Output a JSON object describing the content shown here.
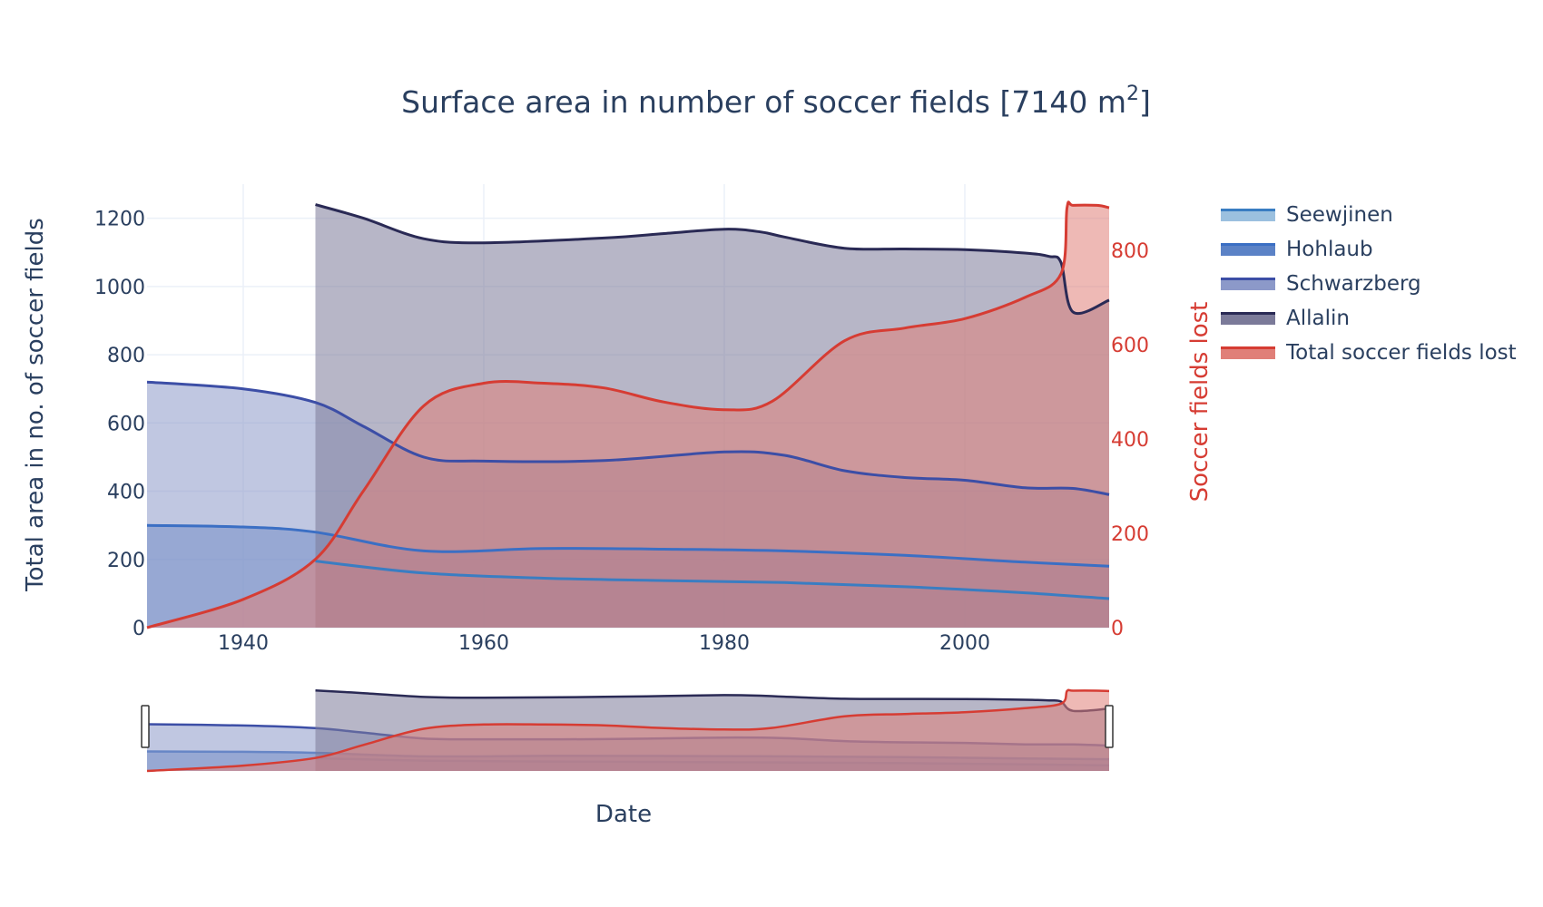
{
  "chart_data": {
    "type": "area",
    "title": "Surface area in number of soccer fields [7140 m²]",
    "title_main": "Surface area in number of soccer fields [7140 m",
    "title_sup": "2",
    "title_end": "]",
    "xlabel": "Date",
    "ylabel": "Total area in no. of soccer fields",
    "y2label": "Soccer fields lost",
    "xlim": [
      1932,
      2012
    ],
    "ylim": [
      0,
      1300
    ],
    "y2lim": [
      0,
      940
    ],
    "x_ticks": [
      "1940",
      "1960",
      "1980",
      "2000"
    ],
    "x_tick_values": [
      1940,
      1960,
      1980,
      2000
    ],
    "y_ticks": [
      "0",
      "200",
      "400",
      "600",
      "800",
      "1000",
      "1200"
    ],
    "y_tick_values": [
      0,
      200,
      400,
      600,
      800,
      1000,
      1200
    ],
    "y2_ticks": [
      "0",
      "200",
      "400",
      "600",
      "800"
    ],
    "y2_tick_values": [
      0,
      200,
      400,
      600,
      800
    ],
    "legend_position": "top-right",
    "grid": true,
    "range_slider": true,
    "series": [
      {
        "name": "Seewjinen",
        "axis": "y",
        "color": "#3a7dc2",
        "fill": "#9bc0df",
        "x": [
          1946,
          1955,
          1965,
          1975,
          1985,
          1995,
          2005,
          2012
        ],
        "values": [
          195,
          160,
          145,
          138,
          132,
          120,
          102,
          85
        ]
      },
      {
        "name": "Hohlaub",
        "axis": "y",
        "color": "#3b6fc4",
        "fill": "#5b82c6",
        "x": [
          1932,
          1940,
          1946,
          1955,
          1965,
          1975,
          1985,
          1995,
          2005,
          2012
        ],
        "values": [
          300,
          295,
          280,
          225,
          232,
          230,
          225,
          212,
          192,
          180
        ]
      },
      {
        "name": "Schwarzberg",
        "axis": "y",
        "color": "#3c4ea6",
        "fill": "#8c99c9",
        "x": [
          1932,
          1940,
          1946,
          1950,
          1955,
          1960,
          1970,
          1980,
          1985,
          1990,
          1995,
          2000,
          2005,
          2009,
          2012
        ],
        "values": [
          720,
          700,
          660,
          590,
          500,
          488,
          490,
          515,
          505,
          460,
          440,
          432,
          410,
          408,
          390
        ]
      },
      {
        "name": "Allalin",
        "axis": "y",
        "color": "#2a2a55",
        "fill": "#7b7a99",
        "x": [
          1946,
          1950,
          1955,
          1960,
          1970,
          1975,
          1980,
          1983,
          1985,
          1990,
          1995,
          2000,
          2005,
          2007,
          2008,
          2009,
          2012
        ],
        "values": [
          1240,
          1200,
          1140,
          1128,
          1142,
          1155,
          1168,
          1160,
          1145,
          1112,
          1110,
          1108,
          1098,
          1088,
          1070,
          925,
          960
        ]
      },
      {
        "name": "Total soccer fields lost",
        "axis": "y2",
        "color": "#d63c33",
        "fill": "#e07f78",
        "x": [
          1932,
          1940,
          1946,
          1950,
          1955,
          1960,
          1965,
          1970,
          1975,
          1980,
          1984,
          1990,
          1995,
          2000,
          2005,
          2008,
          2008.5,
          2009,
          2011,
          2012
        ],
        "values": [
          0,
          60,
          145,
          290,
          470,
          518,
          518,
          508,
          478,
          462,
          480,
          608,
          635,
          655,
          700,
          750,
          890,
          895,
          895,
          890
        ]
      }
    ]
  }
}
